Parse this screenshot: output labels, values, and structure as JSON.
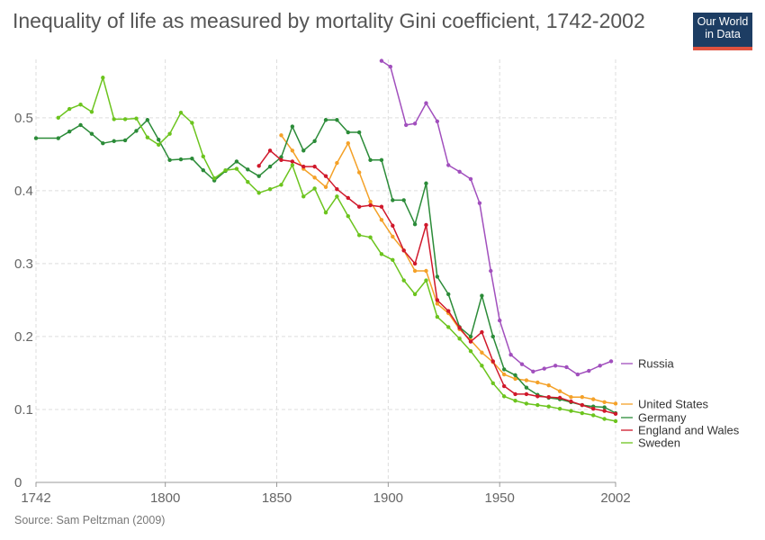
{
  "header": {
    "title": "Inequality of life as measured by mortality Gini coefficient, 1742-2002",
    "logo_line1": "Our World",
    "logo_line2": "in Data"
  },
  "footer": {
    "source": "Source: Sam Peltzman (2009)"
  },
  "chart_data": {
    "type": "line",
    "title": "Inequality of life as measured by mortality Gini coefficient, 1742-2002",
    "xlabel": "",
    "ylabel": "",
    "xlim": [
      1742,
      2002
    ],
    "ylim": [
      0,
      0.58
    ],
    "x_ticks": [
      1742,
      1800,
      1850,
      1900,
      1950,
      2002
    ],
    "y_ticks": [
      0,
      0.1,
      0.2,
      0.3,
      0.4,
      0.5
    ],
    "grid": "dashed",
    "legend": "right",
    "series": [
      {
        "name": "Russia",
        "color": "#a14fbd",
        "x": [
          1897,
          1901,
          1908,
          1912,
          1917,
          1922,
          1927,
          1932,
          1937,
          1941,
          1946,
          1950,
          1955,
          1960,
          1965,
          1970,
          1975,
          1980,
          1985,
          1990,
          1995,
          2000
        ],
        "y": [
          0.578,
          0.57,
          0.49,
          0.492,
          0.52,
          0.495,
          0.435,
          0.426,
          0.416,
          0.383,
          0.29,
          0.222,
          0.175,
          0.162,
          0.152,
          0.156,
          0.16,
          0.158,
          0.148,
          0.153,
          0.16,
          0.166
        ]
      },
      {
        "name": "United States",
        "color": "#f4a128",
        "x": [
          1852,
          1857,
          1862,
          1867,
          1872,
          1877,
          1882,
          1887,
          1892,
          1897,
          1902,
          1907,
          1912,
          1917,
          1922,
          1927,
          1932,
          1937,
          1942,
          1947,
          1952,
          1957,
          1962,
          1967,
          1972,
          1977,
          1982,
          1987,
          1992,
          1997,
          2002
        ],
        "y": [
          0.476,
          0.455,
          0.43,
          0.418,
          0.405,
          0.438,
          0.465,
          0.425,
          0.385,
          0.36,
          0.337,
          0.318,
          0.29,
          0.29,
          0.245,
          0.232,
          0.21,
          0.195,
          0.178,
          0.165,
          0.148,
          0.142,
          0.14,
          0.137,
          0.133,
          0.125,
          0.117,
          0.117,
          0.114,
          0.11,
          0.108
        ]
      },
      {
        "name": "Germany",
        "color": "#2b8b38",
        "x": [
          1742,
          1752,
          1757,
          1762,
          1767,
          1772,
          1777,
          1782,
          1787,
          1792,
          1797,
          1802,
          1807,
          1812,
          1817,
          1822,
          1827,
          1832,
          1837,
          1842,
          1847,
          1852,
          1857,
          1862,
          1867,
          1872,
          1877,
          1882,
          1887,
          1892,
          1897,
          1902,
          1907,
          1912,
          1917,
          1922,
          1927,
          1932,
          1937,
          1942,
          1947,
          1952,
          1957,
          1962,
          1967,
          1972,
          1977,
          1982,
          1987,
          1992,
          1997,
          2002
        ],
        "y": [
          0.472,
          0.472,
          0.481,
          0.49,
          0.478,
          0.465,
          0.468,
          0.469,
          0.482,
          0.497,
          0.47,
          0.442,
          0.443,
          0.444,
          0.428,
          0.414,
          0.427,
          0.44,
          0.429,
          0.42,
          0.433,
          0.446,
          0.488,
          0.455,
          0.468,
          0.497,
          0.497,
          0.48,
          0.48,
          0.442,
          0.442,
          0.387,
          0.387,
          0.354,
          0.41,
          0.282,
          0.258,
          0.213,
          0.2,
          0.256,
          0.2,
          0.155,
          0.147,
          0.13,
          0.12,
          0.116,
          0.114,
          0.11,
          0.106,
          0.104,
          0.103,
          0.095
        ]
      },
      {
        "name": "England and Wales",
        "color": "#d0182b",
        "x": [
          1842,
          1847,
          1852,
          1857,
          1862,
          1867,
          1872,
          1877,
          1882,
          1887,
          1892,
          1897,
          1902,
          1907,
          1912,
          1917,
          1922,
          1927,
          1932,
          1937,
          1942,
          1947,
          1952,
          1957,
          1962,
          1967,
          1972,
          1977,
          1982,
          1987,
          1992,
          1997,
          2002
        ],
        "y": [
          0.434,
          0.455,
          0.442,
          0.44,
          0.433,
          0.433,
          0.42,
          0.402,
          0.39,
          0.378,
          0.38,
          0.378,
          0.352,
          0.318,
          0.3,
          0.353,
          0.25,
          0.235,
          0.212,
          0.193,
          0.206,
          0.166,
          0.132,
          0.121,
          0.121,
          0.118,
          0.117,
          0.116,
          0.111,
          0.106,
          0.101,
          0.098,
          0.094
        ]
      },
      {
        "name": "Sweden",
        "color": "#6cc41e",
        "x": [
          1752,
          1757,
          1762,
          1767,
          1772,
          1777,
          1782,
          1787,
          1792,
          1797,
          1802,
          1807,
          1812,
          1817,
          1822,
          1827,
          1832,
          1837,
          1842,
          1847,
          1852,
          1857,
          1862,
          1867,
          1872,
          1877,
          1882,
          1887,
          1892,
          1897,
          1902,
          1907,
          1912,
          1917,
          1922,
          1927,
          1932,
          1937,
          1942,
          1947,
          1952,
          1957,
          1962,
          1967,
          1972,
          1977,
          1982,
          1987,
          1992,
          1997,
          2002
        ],
        "y": [
          0.5,
          0.512,
          0.518,
          0.508,
          0.555,
          0.498,
          0.498,
          0.499,
          0.473,
          0.463,
          0.478,
          0.507,
          0.493,
          0.447,
          0.417,
          0.428,
          0.43,
          0.412,
          0.397,
          0.402,
          0.408,
          0.435,
          0.392,
          0.403,
          0.37,
          0.392,
          0.365,
          0.339,
          0.336,
          0.313,
          0.305,
          0.277,
          0.258,
          0.277,
          0.227,
          0.213,
          0.197,
          0.18,
          0.16,
          0.136,
          0.118,
          0.112,
          0.108,
          0.106,
          0.104,
          0.101,
          0.098,
          0.095,
          0.092,
          0.087,
          0.084
        ]
      }
    ]
  }
}
